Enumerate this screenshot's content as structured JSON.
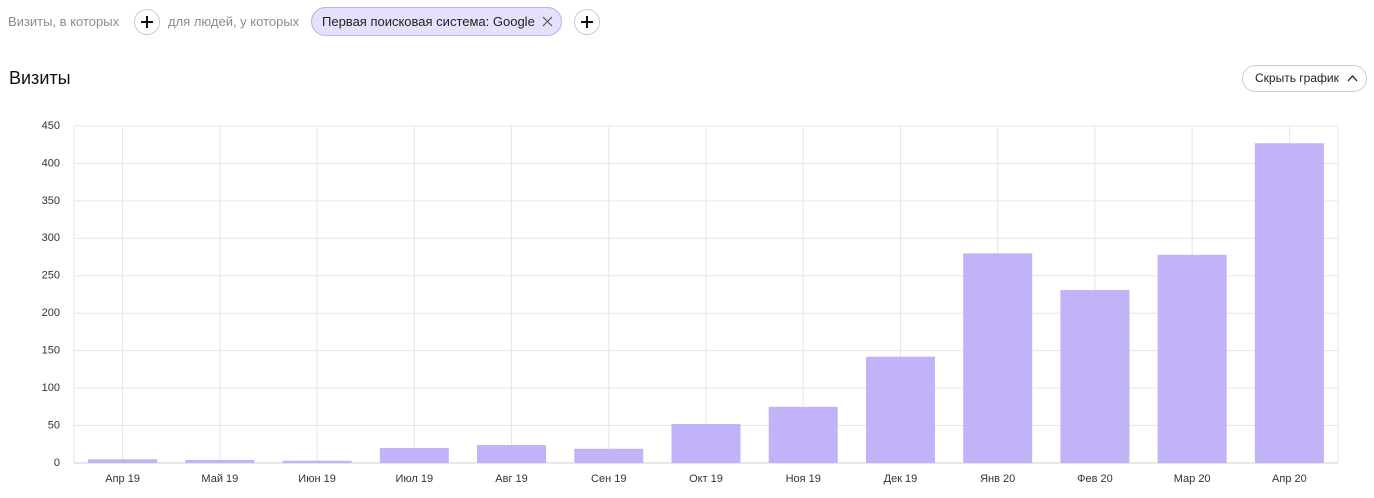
{
  "filters": {
    "visits_label": "Визиты, в которых",
    "people_label": "для людей, у которых",
    "chip": "Первая поисковая система: Google"
  },
  "header": {
    "title": "Визиты",
    "toggle_button": "Скрыть график"
  },
  "chart_data": {
    "type": "bar",
    "categories": [
      "Апр 19",
      "Май 19",
      "Июн 19",
      "Июл 19",
      "Авг 19",
      "Сен 19",
      "Окт 19",
      "Ноя 19",
      "Дек 19",
      "Янв 20",
      "Фев 20",
      "Мар 20",
      "Апр 20"
    ],
    "values": [
      5,
      4,
      3,
      20,
      24,
      19,
      52,
      75,
      142,
      280,
      231,
      278,
      427
    ],
    "color": "#c2b2f8",
    "ylim": [
      0,
      450
    ],
    "yticks": [
      0,
      50,
      100,
      150,
      200,
      250,
      300,
      350,
      400,
      450
    ],
    "grid": true
  }
}
